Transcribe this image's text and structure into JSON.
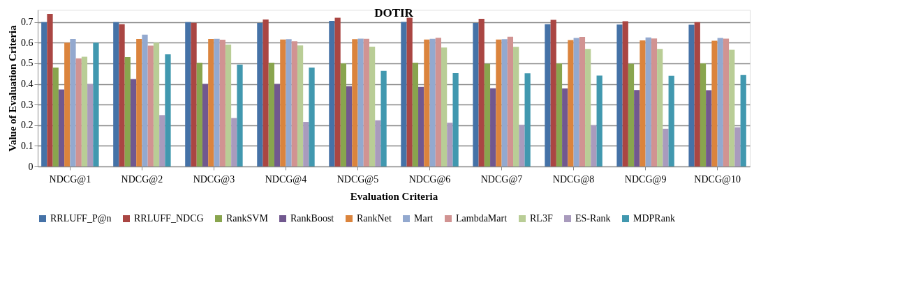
{
  "chart_data": {
    "type": "bar",
    "title": "DOTIR",
    "xlabel": "Evaluation Criteria",
    "ylabel": "Value of Evaluation Criteria",
    "categories": [
      "NDCG@1",
      "NDCG@2",
      "NDCG@3",
      "NDCG@4",
      "NDCG@5",
      "NDCG@6",
      "NDCG@7",
      "NDCG@8",
      "NDCG@9",
      "NDCG@10"
    ],
    "series": [
      {
        "name": "RRLUFF_P@n",
        "color": "#4572a7",
        "values": [
          0.7,
          0.7,
          0.7,
          0.696,
          0.706,
          0.701,
          0.696,
          0.69,
          0.688,
          0.687
        ]
      },
      {
        "name": "RRLUFF_NDCG",
        "color": "#aa4643",
        "values": [
          0.74,
          0.69,
          0.697,
          0.713,
          0.721,
          0.721,
          0.716,
          0.711,
          0.704,
          0.7
        ]
      },
      {
        "name": "RankSVM",
        "color": "#89a54e",
        "values": [
          0.48,
          0.53,
          0.503,
          0.503,
          0.5,
          0.503,
          0.498,
          0.5,
          0.498,
          0.5
        ]
      },
      {
        "name": "RankBoost",
        "color": "#71588f",
        "values": [
          0.373,
          0.424,
          0.4,
          0.4,
          0.389,
          0.386,
          0.379,
          0.378,
          0.371,
          0.37
        ]
      },
      {
        "name": "RankNet",
        "color": "#db843d",
        "values": [
          0.6,
          0.618,
          0.618,
          0.616,
          0.617,
          0.616,
          0.616,
          0.613,
          0.611,
          0.61
        ]
      },
      {
        "name": "Mart",
        "color": "#93a9cf",
        "values": [
          0.618,
          0.639,
          0.619,
          0.617,
          0.62,
          0.619,
          0.617,
          0.623,
          0.626,
          0.623
        ]
      },
      {
        "name": "LambdaMart",
        "color": "#d19392",
        "values": [
          0.524,
          0.586,
          0.615,
          0.607,
          0.619,
          0.624,
          0.629,
          0.628,
          0.621,
          0.62
        ]
      },
      {
        "name": "RL3F",
        "color": "#b9cd96",
        "values": [
          0.532,
          0.6,
          0.591,
          0.587,
          0.581,
          0.577,
          0.58,
          0.57,
          0.57,
          0.566
        ]
      },
      {
        "name": "ES-Rank",
        "color": "#a99bbd",
        "values": [
          0.4,
          0.249,
          0.235,
          0.216,
          0.224,
          0.212,
          0.202,
          0.2,
          0.183,
          0.19
        ]
      },
      {
        "name": "MDPRank",
        "color": "#4198af",
        "values": [
          0.6,
          0.544,
          0.494,
          0.48,
          0.464,
          0.453,
          0.452,
          0.441,
          0.44,
          0.443
        ]
      }
    ],
    "ylim": [
      0,
      0.76
    ],
    "yticks": [
      0,
      0.1,
      0.2,
      0.3,
      0.4,
      0.5,
      0.6,
      0.7
    ],
    "grid": "y",
    "legend": "bottom"
  }
}
